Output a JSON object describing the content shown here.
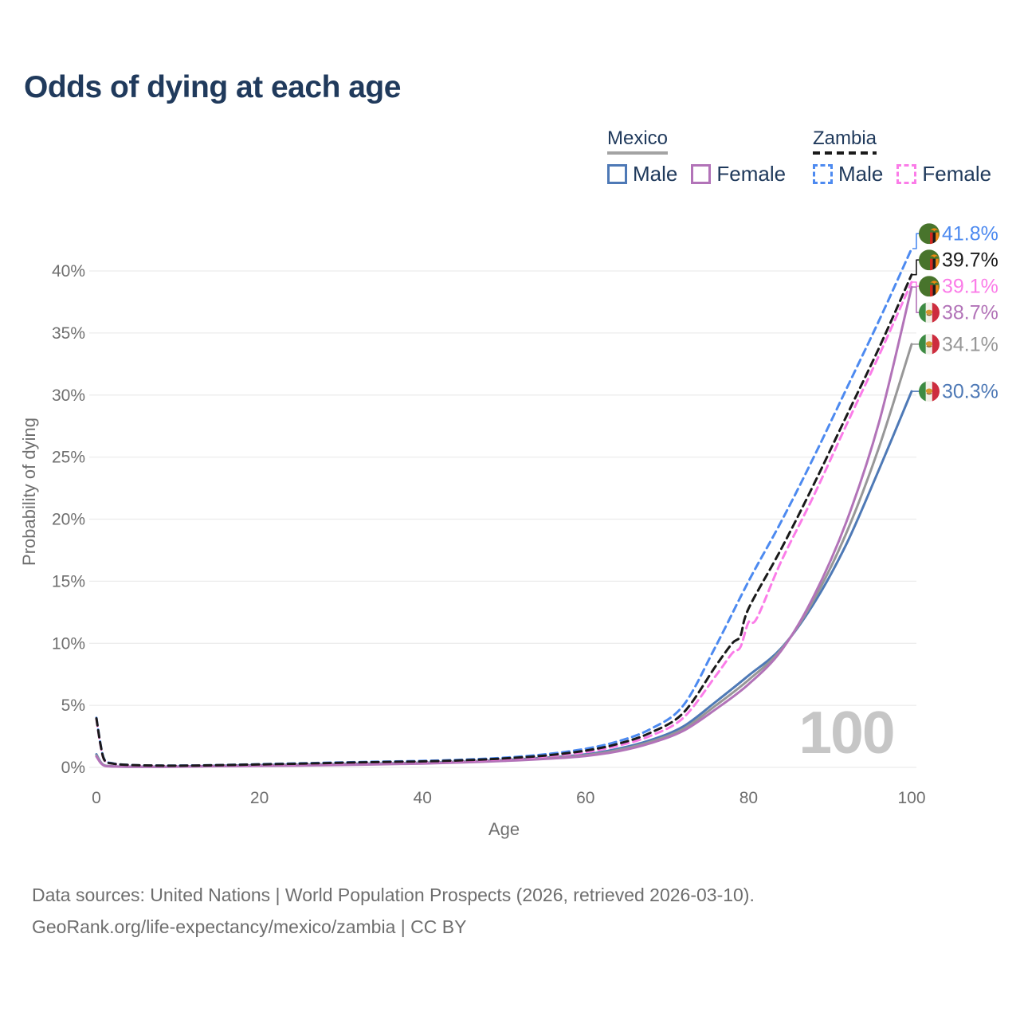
{
  "title": "Odds of dying at each age",
  "legend": {
    "groups": [
      {
        "country": "Mexico",
        "line_style": "solid",
        "underline_color": "#a3a3a3",
        "items": [
          {
            "label": "Male",
            "color": "#4e79b6"
          },
          {
            "label": "Female",
            "color": "#b273b8"
          }
        ]
      },
      {
        "country": "Zambia",
        "line_style": "dashed",
        "underline_color": "#1a1a1a",
        "items": [
          {
            "label": "Male",
            "color": "#4d8af0"
          },
          {
            "label": "Female",
            "color": "#fb7ce8"
          }
        ]
      }
    ]
  },
  "chart_data": {
    "type": "line",
    "title": "Odds of dying at each age",
    "xlabel": "Age",
    "ylabel": "Probability of dying",
    "x_ticks": [
      0,
      20,
      40,
      60,
      80,
      100
    ],
    "y_ticks": [
      {
        "v": 0,
        "label": "0%"
      },
      {
        "v": 5,
        "label": "5%"
      },
      {
        "v": 10,
        "label": "10%"
      },
      {
        "v": 15,
        "label": "15%"
      },
      {
        "v": 20,
        "label": "20%"
      },
      {
        "v": 25,
        "label": "25%"
      },
      {
        "v": 30,
        "label": "30%"
      },
      {
        "v": 35,
        "label": "35%"
      },
      {
        "v": 40,
        "label": "40%"
      }
    ],
    "xlim": [
      0,
      100
    ],
    "ylim": [
      0,
      43.2
    ],
    "grid": true,
    "legend_position": "top-right",
    "watermark": "100",
    "axis_color": "#6f6f6f",
    "grid_color": "#ececec",
    "watermark_color": "#c6c6c6",
    "series": [
      {
        "name": "Mexico Male",
        "country": "mexico",
        "sex": "male",
        "style": "solid",
        "color": "#4e79b6",
        "end_label": "30.3%",
        "end_value_pct": 30.3,
        "points": [
          [
            0,
            1.05
          ],
          [
            0.5,
            0.45
          ],
          [
            1,
            0.16
          ],
          [
            2,
            0.09
          ],
          [
            4,
            0.06
          ],
          [
            8,
            0.06
          ],
          [
            12,
            0.09
          ],
          [
            16,
            0.14
          ],
          [
            20,
            0.18
          ],
          [
            25,
            0.22
          ],
          [
            30,
            0.27
          ],
          [
            35,
            0.32
          ],
          [
            40,
            0.38
          ],
          [
            45,
            0.47
          ],
          [
            50,
            0.6
          ],
          [
            55,
            0.78
          ],
          [
            60,
            1.05
          ],
          [
            64,
            1.5
          ],
          [
            68,
            2.2
          ],
          [
            72,
            3.3
          ],
          [
            76,
            5.3
          ],
          [
            80,
            7.4
          ],
          [
            84,
            9.6
          ],
          [
            88,
            13.2
          ],
          [
            92,
            18
          ],
          [
            96,
            24
          ],
          [
            100,
            30.3
          ]
        ]
      },
      {
        "name": "Mexico Both sexes",
        "country": "mexico",
        "sex": "both",
        "style": "solid",
        "color": "#979797",
        "end_label": "34.1%",
        "end_value_pct": 34.1,
        "points": [
          [
            0,
            0.97
          ],
          [
            0.5,
            0.42
          ],
          [
            1,
            0.15
          ],
          [
            2,
            0.08
          ],
          [
            4,
            0.06
          ],
          [
            8,
            0.06
          ],
          [
            12,
            0.08
          ],
          [
            16,
            0.12
          ],
          [
            20,
            0.15
          ],
          [
            25,
            0.19
          ],
          [
            30,
            0.23
          ],
          [
            35,
            0.29
          ],
          [
            40,
            0.35
          ],
          [
            45,
            0.44
          ],
          [
            50,
            0.56
          ],
          [
            55,
            0.73
          ],
          [
            60,
            0.98
          ],
          [
            64,
            1.4
          ],
          [
            68,
            2.07
          ],
          [
            72,
            3.1
          ],
          [
            76,
            5.0
          ],
          [
            80,
            7.05
          ],
          [
            84,
            9.5
          ],
          [
            88,
            13.5
          ],
          [
            92,
            18.9
          ],
          [
            96,
            25.8
          ],
          [
            100,
            34.1
          ]
        ]
      },
      {
        "name": "Mexico Female",
        "country": "mexico",
        "sex": "female",
        "style": "solid",
        "color": "#b273b8",
        "end_label": "38.7%",
        "end_value_pct": 38.7,
        "points": [
          [
            0,
            0.88
          ],
          [
            0.5,
            0.38
          ],
          [
            1,
            0.13
          ],
          [
            2,
            0.07
          ],
          [
            4,
            0.05
          ],
          [
            8,
            0.05
          ],
          [
            12,
            0.07
          ],
          [
            16,
            0.1
          ],
          [
            20,
            0.12
          ],
          [
            25,
            0.15
          ],
          [
            30,
            0.19
          ],
          [
            35,
            0.25
          ],
          [
            40,
            0.31
          ],
          [
            45,
            0.4
          ],
          [
            50,
            0.52
          ],
          [
            55,
            0.68
          ],
          [
            60,
            0.92
          ],
          [
            64,
            1.3
          ],
          [
            68,
            1.95
          ],
          [
            72,
            2.95
          ],
          [
            76,
            4.7
          ],
          [
            80,
            6.7
          ],
          [
            84,
            9.4
          ],
          [
            88,
            13.8
          ],
          [
            92,
            19.8
          ],
          [
            96,
            27.8
          ],
          [
            100,
            38.7
          ]
        ]
      },
      {
        "name": "Zambia Male",
        "country": "zambia",
        "sex": "male",
        "style": "dashed",
        "color": "#4d8af0",
        "end_label": "41.8%",
        "end_value_pct": 41.8,
        "points": [
          [
            0,
            4.0
          ],
          [
            0.5,
            1.9
          ],
          [
            1,
            0.62
          ],
          [
            2,
            0.33
          ],
          [
            4,
            0.2
          ],
          [
            8,
            0.15
          ],
          [
            12,
            0.16
          ],
          [
            16,
            0.2
          ],
          [
            20,
            0.26
          ],
          [
            25,
            0.33
          ],
          [
            30,
            0.4
          ],
          [
            35,
            0.46
          ],
          [
            40,
            0.52
          ],
          [
            45,
            0.62
          ],
          [
            50,
            0.78
          ],
          [
            55,
            1.05
          ],
          [
            60,
            1.5
          ],
          [
            64,
            2.1
          ],
          [
            68,
            3.1
          ],
          [
            72,
            5.0
          ],
          [
            76,
            9.8
          ],
          [
            80,
            15.0
          ],
          [
            84,
            19.8
          ],
          [
            88,
            25.0
          ],
          [
            92,
            30.5
          ],
          [
            96,
            36.0
          ],
          [
            100,
            41.8
          ]
        ]
      },
      {
        "name": "Zambia Female",
        "country": "zambia",
        "sex": "female",
        "style": "dashed",
        "color": "#fb7ce8",
        "end_label": "39.1%",
        "end_value_pct": 39.1,
        "points": [
          [
            0,
            3.9
          ],
          [
            0.5,
            1.8
          ],
          [
            1,
            0.55
          ],
          [
            2,
            0.3
          ],
          [
            4,
            0.18
          ],
          [
            8,
            0.13
          ],
          [
            12,
            0.14
          ],
          [
            16,
            0.17
          ],
          [
            20,
            0.21
          ],
          [
            25,
            0.27
          ],
          [
            30,
            0.33
          ],
          [
            35,
            0.39
          ],
          [
            40,
            0.44
          ],
          [
            45,
            0.53
          ],
          [
            50,
            0.66
          ],
          [
            55,
            0.88
          ],
          [
            60,
            1.22
          ],
          [
            64,
            1.75
          ],
          [
            68,
            2.55
          ],
          [
            72,
            4.0
          ],
          [
            76,
            7.4
          ],
          [
            78,
            9.2
          ],
          [
            79,
            9.7
          ],
          [
            80,
            11.7
          ],
          [
            81,
            12.0
          ],
          [
            84,
            16.6
          ],
          [
            88,
            21.9
          ],
          [
            92,
            27.6
          ],
          [
            96,
            33.2
          ],
          [
            100,
            39.1
          ]
        ]
      },
      {
        "name": "Zambia Both sexes",
        "country": "zambia",
        "sex": "both",
        "style": "dashed",
        "color": "#1a1a1a",
        "end_label": "39.7%",
        "end_value_pct": 39.7,
        "points": [
          [
            0,
            3.95
          ],
          [
            0.5,
            1.85
          ],
          [
            1,
            0.58
          ],
          [
            2,
            0.31
          ],
          [
            4,
            0.19
          ],
          [
            8,
            0.14
          ],
          [
            12,
            0.15
          ],
          [
            16,
            0.19
          ],
          [
            20,
            0.24
          ],
          [
            25,
            0.3
          ],
          [
            30,
            0.37
          ],
          [
            35,
            0.43
          ],
          [
            40,
            0.48
          ],
          [
            45,
            0.57
          ],
          [
            50,
            0.72
          ],
          [
            55,
            0.95
          ],
          [
            60,
            1.35
          ],
          [
            64,
            1.9
          ],
          [
            68,
            2.8
          ],
          [
            72,
            4.4
          ],
          [
            76,
            8.2
          ],
          [
            78,
            10.0
          ],
          [
            79,
            10.6
          ],
          [
            80,
            12.8
          ],
          [
            84,
            17.6
          ],
          [
            88,
            22.8
          ],
          [
            92,
            28.3
          ],
          [
            96,
            33.8
          ],
          [
            100,
            39.7
          ]
        ]
      }
    ]
  },
  "footer": {
    "line1": "Data sources: United Nations | World Population Prospects (2026, retrieved 2026-03-10).",
    "line2": "GeoRank.org/life-expectancy/mexico/zambia | CC BY"
  }
}
